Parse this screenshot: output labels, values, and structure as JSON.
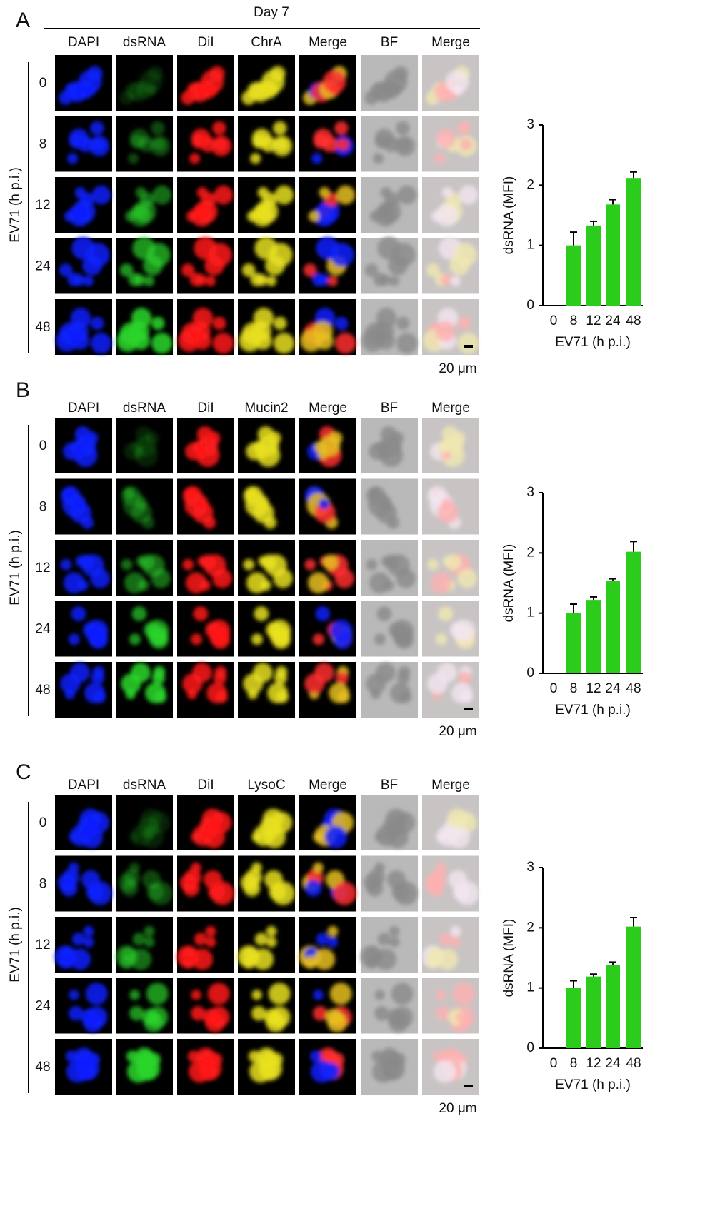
{
  "panels": [
    {
      "label": "A",
      "header": "Day 7",
      "columns": [
        "DAPI",
        "dsRNA",
        "DiI",
        "ChrA",
        "Merge",
        "BF",
        "Merge"
      ],
      "row_axis": "EV71 (h p.i.)",
      "rows": [
        "0",
        "8",
        "12",
        "24",
        "48"
      ],
      "scale": "20 μm"
    },
    {
      "label": "B",
      "columns": [
        "DAPI",
        "dsRNA",
        "DiI",
        "Mucin2",
        "Merge",
        "BF",
        "Merge"
      ],
      "row_axis": "EV71 (h p.i.)",
      "rows": [
        "0",
        "8",
        "12",
        "24",
        "48"
      ],
      "scale": "20 μm"
    },
    {
      "label": "C",
      "columns": [
        "DAPI",
        "dsRNA",
        "DiI",
        "LysoC",
        "Merge",
        "BF",
        "Merge"
      ],
      "row_axis": "EV71 (h p.i.)",
      "rows": [
        "0",
        "8",
        "12",
        "24",
        "48"
      ],
      "scale": "20 μm"
    }
  ],
  "chart_data": [
    {
      "type": "bar",
      "x_label": "EV71 (h p.i.)",
      "y_label": "dsRNA (MFI)",
      "categories": [
        "0",
        "8",
        "12",
        "24",
        "48"
      ],
      "values": [
        0,
        1.0,
        1.33,
        1.68,
        2.12
      ],
      "errors": [
        0,
        0.22,
        0.07,
        0.08,
        0.1
      ],
      "color": "#2ccc1c",
      "ylim": [
        0,
        3
      ],
      "yticks": [
        0,
        1,
        2,
        3
      ]
    },
    {
      "type": "bar",
      "x_label": "EV71 (h p.i.)",
      "y_label": "dsRNA (MFI)",
      "categories": [
        "0",
        "8",
        "12",
        "24",
        "48"
      ],
      "values": [
        0,
        1.0,
        1.22,
        1.53,
        2.02
      ],
      "errors": [
        0,
        0.15,
        0.05,
        0.04,
        0.17
      ],
      "color": "#2ccc1c",
      "ylim": [
        0,
        3
      ],
      "yticks": [
        0,
        1,
        2,
        3
      ]
    },
    {
      "type": "bar",
      "x_label": "EV71 (h p.i.)",
      "y_label": "dsRNA (MFI)",
      "categories": [
        "0",
        "8",
        "12",
        "24",
        "48"
      ],
      "values": [
        0,
        1.0,
        1.19,
        1.38,
        2.02
      ],
      "errors": [
        0,
        0.12,
        0.04,
        0.05,
        0.15
      ],
      "color": "#2ccc1c",
      "ylim": [
        0,
        3
      ],
      "yticks": [
        0,
        1,
        2,
        3
      ]
    }
  ]
}
